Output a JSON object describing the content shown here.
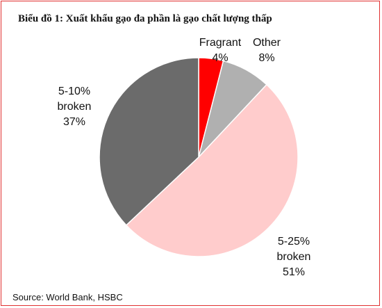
{
  "chart_data": {
    "type": "pie",
    "title": "Biểu đồ 1: Xuất khẩu gạo đa phần là gạo chất lượng thấp",
    "source": "Source: World Bank, HSBC",
    "slices": [
      {
        "name": "Fragrant",
        "value": 4,
        "value_label": "4%",
        "label_lines": [
          "Fragrant",
          "4%"
        ],
        "color": "#ff0000"
      },
      {
        "name": "Other",
        "value": 8,
        "value_label": "8%",
        "label_lines": [
          "Other",
          "8%"
        ],
        "color": "#b0b0b0"
      },
      {
        "name": "5-25% broken",
        "value": 51,
        "value_label": "51%",
        "label_lines": [
          "5-25%",
          "broken",
          "51%"
        ],
        "color": "#ffcccc"
      },
      {
        "name": "5-10% broken",
        "value": 37,
        "value_label": "37%",
        "label_lines": [
          "5-10%",
          "broken",
          "37%"
        ],
        "color": "#6b6b6b"
      }
    ],
    "start": "12 o'clock",
    "direction": "clockwise"
  }
}
